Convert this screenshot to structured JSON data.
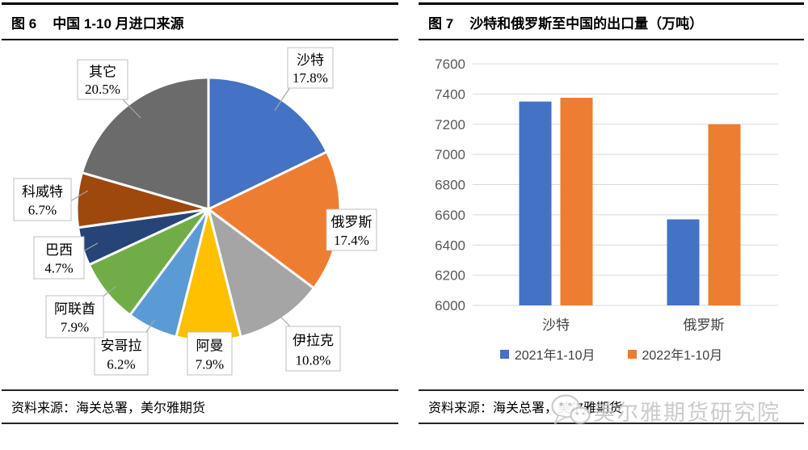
{
  "panels": {
    "left": {
      "fig_no": "图 6",
      "title": "中国 1-10 月进口来源",
      "source": "资料来源：海关总署，美尔雅期货"
    },
    "right": {
      "fig_no": "图 7",
      "title": "沙特和俄罗斯至中国的出口量（万吨）",
      "source": "资料来源：海关总署，美尔雅期货"
    }
  },
  "watermark": {
    "text": "美尔雅期货研究院",
    "icon": "wechat-icon"
  },
  "chart_data": [
    {
      "type": "pie",
      "title": "中国 1-10 月进口来源",
      "unit": "%",
      "direction": "clockwise",
      "start_angle": "12-oclock",
      "slices": [
        {
          "label": "沙特",
          "value": 17.8,
          "color": "#4472C4"
        },
        {
          "label": "俄罗斯",
          "value": 17.4,
          "color": "#ED7D31"
        },
        {
          "label": "伊拉克",
          "value": 10.8,
          "color": "#A5A5A5"
        },
        {
          "label": "阿曼",
          "value": 7.9,
          "color": "#FFC000"
        },
        {
          "label": "安哥拉",
          "value": 6.2,
          "color": "#5B9BD5"
        },
        {
          "label": "阿联酋",
          "value": 7.9,
          "color": "#70AD47"
        },
        {
          "label": "巴西",
          "value": 4.7,
          "color": "#264478"
        },
        {
          "label": "科威特",
          "value": 6.7,
          "color": "#9E480E"
        },
        {
          "label": "其它",
          "value": 20.5,
          "color": "#6B6B6B"
        }
      ]
    },
    {
      "type": "bar",
      "title": "沙特和俄罗斯至中国的出口量（万吨）",
      "categories": [
        "沙特",
        "俄罗斯"
      ],
      "series": [
        {
          "name": "2021年1-10月",
          "color": "#4472C4",
          "values": [
            7350,
            6570
          ]
        },
        {
          "name": "2022年1-10月",
          "color": "#ED7D31",
          "values": [
            7375,
            7200
          ]
        }
      ],
      "ylim": [
        6000,
        7600
      ],
      "yticks": [
        6000,
        6200,
        6400,
        6600,
        6800,
        7000,
        7200,
        7400,
        7600
      ],
      "grid": true,
      "legend_position": "bottom",
      "grid_color": "#D9D9D9",
      "axis_text_color": "#595959"
    }
  ]
}
